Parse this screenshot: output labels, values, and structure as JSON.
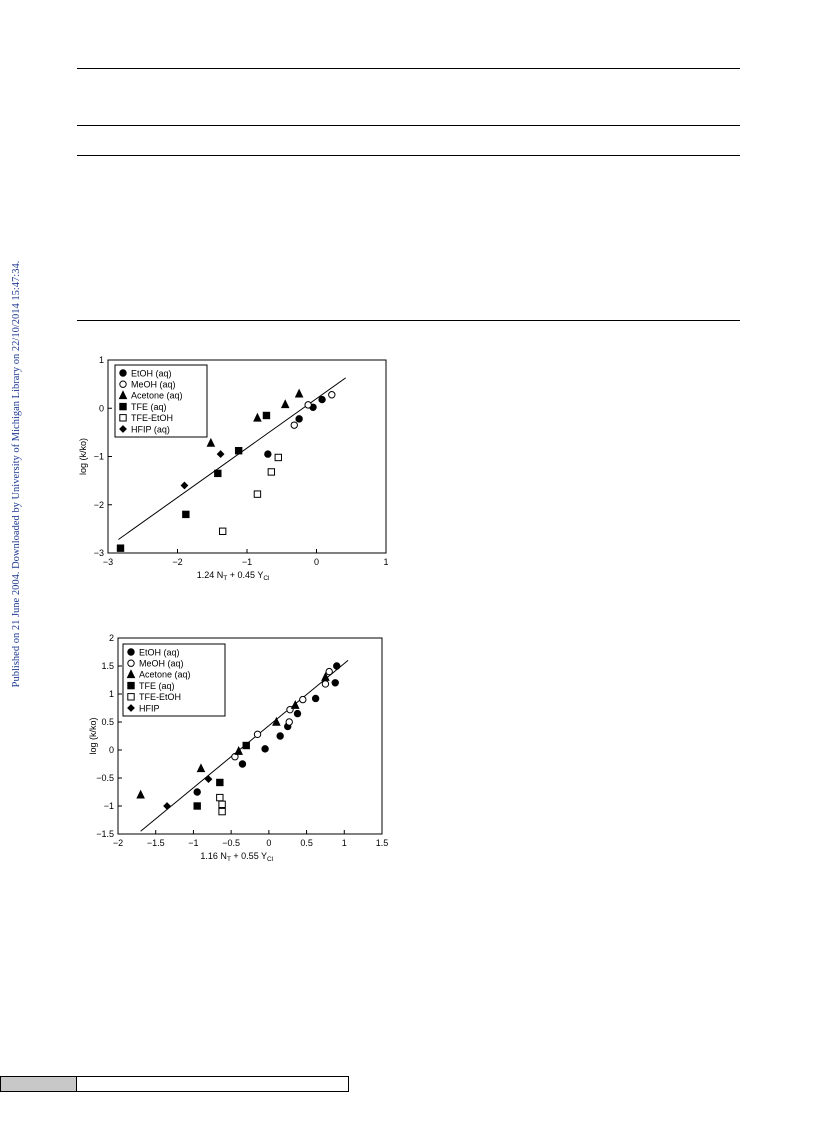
{
  "side_note": "Published on 21 June 2004. Downloaded by University of Michigan Library on 22/10/2014 15:47:34.",
  "chart_data": [
    {
      "type": "scatter",
      "xlabel_main": "1.24 N",
      "xlabel_sub1": "T",
      "xlabel_mid": " + 0.45 Y",
      "xlabel_sub2": "Cl",
      "ylabel": "log (k/ko)",
      "xlim": [
        -3,
        1
      ],
      "ylim": [
        -3,
        1
      ],
      "xticks": [
        -3,
        -2,
        -1,
        0,
        1
      ],
      "yticks": [
        -3,
        -2,
        -1,
        0,
        1
      ],
      "xtick_labels": [
        "−3",
        "−2",
        "−1",
        "0",
        "1"
      ],
      "ytick_labels": [
        "−3",
        "−2",
        "−1",
        "0",
        "1"
      ],
      "fit_line": [
        [
          -2.85,
          -2.72
        ],
        [
          0.42,
          0.63
        ]
      ],
      "series": [
        {
          "name": "EtOH (aq)",
          "marker": "circle-filled",
          "points": [
            [
              -0.7,
              -0.95
            ],
            [
              -0.25,
              -0.22
            ],
            [
              -0.05,
              0.02
            ],
            [
              0.08,
              0.18
            ]
          ]
        },
        {
          "name": "MeOH (aq)",
          "marker": "circle-open",
          "points": [
            [
              -0.32,
              -0.35
            ],
            [
              -0.12,
              0.07
            ],
            [
              0.22,
              0.28
            ]
          ]
        },
        {
          "name": "Acetone (aq)",
          "marker": "triangle-filled",
          "points": [
            [
              -1.52,
              -0.72
            ],
            [
              -0.85,
              -0.2
            ],
            [
              -0.45,
              0.08
            ],
            [
              -0.25,
              0.3
            ]
          ]
        },
        {
          "name": "TFE (aq)",
          "marker": "square-filled",
          "points": [
            [
              -2.82,
              -2.9
            ],
            [
              -1.88,
              -2.2
            ],
            [
              -1.42,
              -1.35
            ],
            [
              -1.12,
              -0.88
            ],
            [
              -0.72,
              -0.15
            ]
          ]
        },
        {
          "name": "TFE-EtOH",
          "marker": "square-open",
          "points": [
            [
              -1.35,
              -2.55
            ],
            [
              -0.85,
              -1.78
            ],
            [
              -0.65,
              -1.32
            ],
            [
              -0.55,
              -1.02
            ]
          ]
        },
        {
          "name": "HFIP (aq)",
          "marker": "diamond-filled",
          "points": [
            [
              -1.9,
              -1.6
            ],
            [
              -1.38,
              -0.95
            ]
          ]
        }
      ]
    },
    {
      "type": "scatter",
      "xlabel_main": "1.16 N",
      "xlabel_sub1": "T",
      "xlabel_mid": " + 0.55 Y",
      "xlabel_sub2": "Cl",
      "ylabel": "log (k/ko)",
      "xlim": [
        -2,
        1.5
      ],
      "ylim": [
        -1.5,
        2
      ],
      "xticks": [
        -2,
        -1.5,
        -1,
        -0.5,
        0,
        0.5,
        1,
        1.5
      ],
      "yticks": [
        -1.5,
        -1,
        -0.5,
        0,
        0.5,
        1,
        1.5,
        2
      ],
      "xtick_labels": [
        "−2",
        "−1.5",
        "−1",
        "−0.5",
        "0",
        "0.5",
        "1",
        "1.5"
      ],
      "ytick_labels": [
        "−1.5",
        "−1",
        "−0.5",
        "0",
        "0.5",
        "1",
        "1.5",
        "2"
      ],
      "fit_line": [
        [
          -1.7,
          -1.45
        ],
        [
          1.05,
          1.6
        ]
      ],
      "series": [
        {
          "name": "EtOH (aq)",
          "marker": "circle-filled",
          "points": [
            [
              -0.95,
              -0.75
            ],
            [
              -0.35,
              -0.25
            ],
            [
              -0.05,
              0.02
            ],
            [
              0.15,
              0.25
            ],
            [
              0.25,
              0.42
            ],
            [
              0.38,
              0.65
            ],
            [
              0.62,
              0.92
            ],
            [
              0.88,
              1.2
            ],
            [
              0.9,
              1.5
            ]
          ]
        },
        {
          "name": "MeOH (aq)",
          "marker": "circle-open",
          "points": [
            [
              -0.45,
              -0.12
            ],
            [
              -0.15,
              0.28
            ],
            [
              0.27,
              0.5
            ],
            [
              0.28,
              0.72
            ],
            [
              0.45,
              0.9
            ],
            [
              0.75,
              1.18
            ],
            [
              0.8,
              1.4
            ]
          ]
        },
        {
          "name": "Acetone (aq)",
          "marker": "triangle-filled",
          "points": [
            [
              -1.7,
              -0.8
            ],
            [
              -0.9,
              -0.33
            ],
            [
              -0.4,
              -0.02
            ],
            [
              0.1,
              0.5
            ],
            [
              0.35,
              0.8
            ],
            [
              0.75,
              1.3
            ]
          ]
        },
        {
          "name": "TFE (aq)",
          "marker": "square-filled",
          "points": [
            [
              -0.95,
              -1.0
            ],
            [
              -0.65,
              -0.58
            ],
            [
              -0.3,
              0.08
            ]
          ]
        },
        {
          "name": "TFE-EtOH",
          "marker": "square-open",
          "points": [
            [
              -0.65,
              -0.85
            ],
            [
              -0.62,
              -0.97
            ],
            [
              -0.62,
              -1.1
            ]
          ]
        },
        {
          "name": "HFIP",
          "marker": "diamond-filled",
          "points": [
            [
              -1.35,
              -1.0
            ],
            [
              -0.8,
              -0.52
            ]
          ]
        }
      ]
    }
  ]
}
